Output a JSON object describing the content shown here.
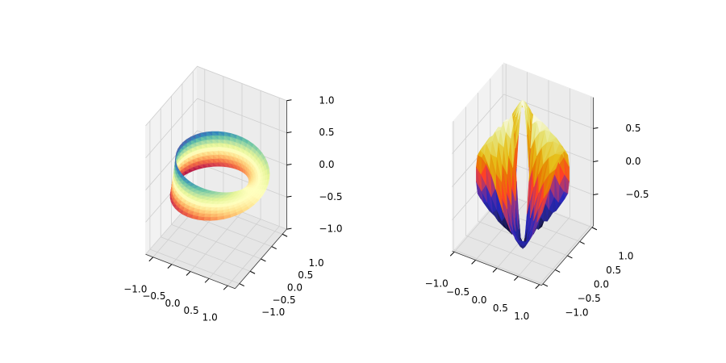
{
  "chart_data": [
    {
      "type": "surface3d",
      "colormap": [
        "#9e0142",
        "#d53e4f",
        "#f46d43",
        "#fdae61",
        "#fee08b",
        "#ffffbf",
        "#e6f598",
        "#abdda4",
        "#66c2a5",
        "#3288bd",
        "#5e4fa2"
      ],
      "xlim": [
        -1.2,
        1.2
      ],
      "ylim": [
        -1.2,
        1.2
      ],
      "zlim": [
        -1.0,
        1.0
      ],
      "xticks": [
        {
          "value": -1,
          "label": "−1.0"
        },
        {
          "value": -0.5,
          "label": "−0.5"
        },
        {
          "value": 0,
          "label": "0.0"
        },
        {
          "value": 0.5,
          "label": "0.5"
        },
        {
          "value": 1,
          "label": "1.0"
        }
      ],
      "yticks": [
        {
          "value": -1,
          "label": "−1.0"
        },
        {
          "value": -0.5,
          "label": "−0.5"
        },
        {
          "value": 0,
          "label": "0.0"
        },
        {
          "value": 0.5,
          "label": "0.5"
        },
        {
          "value": 1,
          "label": "1.0"
        }
      ],
      "zticks": [
        {
          "value": -1,
          "label": "−1.0"
        },
        {
          "value": -0.5,
          "label": "−0.5"
        },
        {
          "value": 0,
          "label": "0.0"
        },
        {
          "value": 0.5,
          "label": "0.5"
        },
        {
          "value": 1,
          "label": "1.0"
        }
      ],
      "grid": true
    },
    {
      "type": "surface3d",
      "colormap": [
        "#000000",
        "#262680",
        "#2626bf",
        "#993380",
        "#ff4026",
        "#e68000",
        "#e6bf1a",
        "#e6e680",
        "#ffffff"
      ],
      "xlim": [
        -1.05,
        1.05
      ],
      "ylim": [
        -1.05,
        1.05
      ],
      "zlim": [
        -0.97,
        0.97
      ],
      "xticks": [
        {
          "value": -1,
          "label": "−1.0"
        },
        {
          "value": -0.5,
          "label": "−0.5"
        },
        {
          "value": 0,
          "label": "0.0"
        },
        {
          "value": 0.5,
          "label": "0.5"
        },
        {
          "value": 1,
          "label": "1.0"
        }
      ],
      "yticks": [
        {
          "value": -1,
          "label": "−1.0"
        },
        {
          "value": -0.5,
          "label": "−0.5"
        },
        {
          "value": 0,
          "label": "0.0"
        },
        {
          "value": 0.5,
          "label": "0.5"
        },
        {
          "value": 1,
          "label": "1.0"
        }
      ],
      "zticks": [
        {
          "value": -0.5,
          "label": "−0.5"
        },
        {
          "value": 0,
          "label": "0.0"
        },
        {
          "value": 0.5,
          "label": "0.5"
        }
      ],
      "grid": true
    }
  ]
}
